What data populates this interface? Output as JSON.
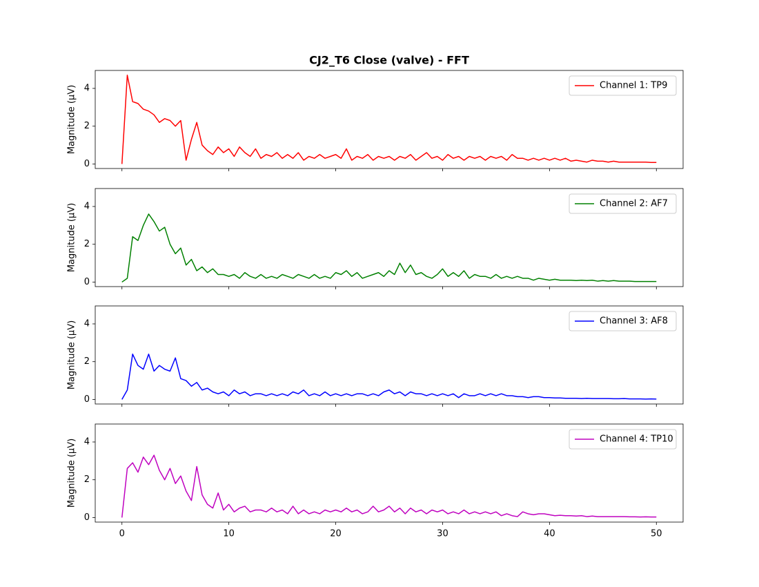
{
  "chart_data": {
    "type": "line",
    "title": "CJ2_T6 Close (valve) - FFT",
    "x": [
      0,
      0.5,
      1,
      1.5,
      2,
      2.5,
      3,
      3.5,
      4,
      4.5,
      5,
      5.5,
      6,
      6.5,
      7,
      7.5,
      8,
      8.5,
      9,
      9.5,
      10,
      10.5,
      11,
      11.5,
      12,
      12.5,
      13,
      13.5,
      14,
      14.5,
      15,
      15.5,
      16,
      16.5,
      17,
      17.5,
      18,
      18.5,
      19,
      19.5,
      20,
      20.5,
      21,
      21.5,
      22,
      22.5,
      23,
      23.5,
      24,
      24.5,
      25,
      25.5,
      26,
      26.5,
      27,
      27.5,
      28,
      28.5,
      29,
      29.5,
      30,
      30.5,
      31,
      31.5,
      32,
      32.5,
      33,
      33.5,
      34,
      34.5,
      35,
      35.5,
      36,
      36.5,
      37,
      37.5,
      38,
      38.5,
      39,
      39.5,
      40,
      40.5,
      41,
      41.5,
      42,
      42.5,
      43,
      43.5,
      44,
      44.5,
      45,
      45.5,
      46,
      46.5,
      47,
      47.5,
      48,
      48.5,
      49,
      49.5,
      50
    ],
    "xlim": [
      -2.5,
      52.5
    ],
    "xticks": [
      0,
      10,
      20,
      30,
      40,
      50
    ],
    "legend": "upper right",
    "panels": [
      {
        "ylabel": "Magnitude (μV)",
        "ylim": [
          -0.24,
          4.95
        ],
        "yticks": [
          0,
          2,
          4
        ],
        "series": [
          {
            "name": "Channel 1: TP9",
            "color": "#ff0000",
            "values": [
              0,
              4.7,
              3.3,
              3.2,
              2.9,
              2.8,
              2.6,
              2.2,
              2.4,
              2.3,
              2.0,
              2.3,
              0.2,
              1.3,
              2.2,
              1.0,
              0.7,
              0.5,
              0.9,
              0.6,
              0.8,
              0.4,
              0.9,
              0.6,
              0.4,
              0.8,
              0.3,
              0.5,
              0.4,
              0.6,
              0.3,
              0.5,
              0.3,
              0.6,
              0.2,
              0.4,
              0.3,
              0.5,
              0.3,
              0.4,
              0.5,
              0.3,
              0.8,
              0.2,
              0.4,
              0.3,
              0.5,
              0.2,
              0.4,
              0.3,
              0.4,
              0.2,
              0.4,
              0.3,
              0.5,
              0.2,
              0.4,
              0.6,
              0.3,
              0.4,
              0.2,
              0.5,
              0.3,
              0.4,
              0.2,
              0.4,
              0.3,
              0.4,
              0.2,
              0.4,
              0.3,
              0.4,
              0.2,
              0.5,
              0.3,
              0.3,
              0.2,
              0.3,
              0.2,
              0.3,
              0.2,
              0.3,
              0.2,
              0.3,
              0.15,
              0.2,
              0.15,
              0.1,
              0.2,
              0.15,
              0.15,
              0.1,
              0.15,
              0.1,
              0.1,
              0.1,
              0.1,
              0.1,
              0.1,
              0.08,
              0.08
            ]
          }
        ]
      },
      {
        "ylabel": "Magnitude (μV)",
        "ylim": [
          -0.24,
          4.95
        ],
        "yticks": [
          0,
          2,
          4
        ],
        "series": [
          {
            "name": "Channel 2: AF7",
            "color": "#008000",
            "values": [
              0,
              0.2,
              2.4,
              2.2,
              3.0,
              3.6,
              3.2,
              2.7,
              2.9,
              2.0,
              1.5,
              1.8,
              0.9,
              1.2,
              0.6,
              0.8,
              0.5,
              0.7,
              0.4,
              0.4,
              0.3,
              0.4,
              0.2,
              0.5,
              0.3,
              0.2,
              0.4,
              0.2,
              0.3,
              0.2,
              0.4,
              0.3,
              0.2,
              0.4,
              0.3,
              0.2,
              0.4,
              0.2,
              0.3,
              0.2,
              0.5,
              0.4,
              0.6,
              0.3,
              0.5,
              0.2,
              0.3,
              0.4,
              0.5,
              0.3,
              0.6,
              0.4,
              1.0,
              0.5,
              0.9,
              0.4,
              0.5,
              0.3,
              0.2,
              0.4,
              0.7,
              0.3,
              0.5,
              0.3,
              0.6,
              0.2,
              0.4,
              0.3,
              0.3,
              0.2,
              0.4,
              0.2,
              0.3,
              0.2,
              0.3,
              0.2,
              0.2,
              0.1,
              0.2,
              0.15,
              0.1,
              0.15,
              0.1,
              0.1,
              0.1,
              0.08,
              0.1,
              0.08,
              0.1,
              0.05,
              0.08,
              0.05,
              0.08,
              0.05,
              0.05,
              0.05,
              0.03,
              0.03,
              0.03,
              0.03,
              0.03
            ]
          }
        ]
      },
      {
        "ylabel": "Magnitude (μV)",
        "ylim": [
          -0.24,
          4.95
        ],
        "yticks": [
          0,
          2,
          4
        ],
        "series": [
          {
            "name": "Channel 3: AF8",
            "color": "#0000ff",
            "values": [
              0,
              0.5,
              2.4,
              1.8,
              1.6,
              2.4,
              1.5,
              1.8,
              1.6,
              1.5,
              2.2,
              1.1,
              1.0,
              0.7,
              0.9,
              0.5,
              0.6,
              0.4,
              0.3,
              0.4,
              0.2,
              0.5,
              0.3,
              0.4,
              0.2,
              0.3,
              0.3,
              0.2,
              0.3,
              0.2,
              0.3,
              0.2,
              0.4,
              0.3,
              0.5,
              0.2,
              0.3,
              0.2,
              0.4,
              0.2,
              0.3,
              0.2,
              0.3,
              0.2,
              0.3,
              0.3,
              0.2,
              0.3,
              0.2,
              0.4,
              0.5,
              0.3,
              0.4,
              0.2,
              0.4,
              0.3,
              0.3,
              0.2,
              0.3,
              0.2,
              0.3,
              0.2,
              0.3,
              0.1,
              0.3,
              0.2,
              0.2,
              0.3,
              0.2,
              0.3,
              0.2,
              0.3,
              0.2,
              0.2,
              0.15,
              0.15,
              0.1,
              0.15,
              0.15,
              0.1,
              0.1,
              0.08,
              0.08,
              0.06,
              0.06,
              0.06,
              0.05,
              0.06,
              0.05,
              0.05,
              0.05,
              0.05,
              0.04,
              0.04,
              0.05,
              0.03,
              0.03,
              0.03,
              0.02,
              0.03,
              0.02
            ]
          }
        ]
      },
      {
        "ylabel": "Magnitude (μV)",
        "ylim": [
          -0.24,
          4.95
        ],
        "yticks": [
          0,
          2,
          4
        ],
        "series": [
          {
            "name": "Channel 4: TP10",
            "color": "#bf00bf",
            "values": [
              0,
              2.6,
              2.9,
              2.4,
              3.2,
              2.8,
              3.3,
              2.5,
              2.0,
              2.6,
              1.8,
              2.2,
              1.4,
              0.9,
              2.7,
              1.2,
              0.7,
              0.5,
              1.3,
              0.4,
              0.7,
              0.3,
              0.5,
              0.6,
              0.3,
              0.4,
              0.4,
              0.3,
              0.5,
              0.3,
              0.4,
              0.2,
              0.6,
              0.2,
              0.4,
              0.2,
              0.3,
              0.2,
              0.4,
              0.3,
              0.4,
              0.3,
              0.5,
              0.3,
              0.4,
              0.2,
              0.3,
              0.6,
              0.3,
              0.4,
              0.6,
              0.3,
              0.5,
              0.2,
              0.5,
              0.3,
              0.4,
              0.2,
              0.4,
              0.3,
              0.4,
              0.2,
              0.3,
              0.2,
              0.4,
              0.2,
              0.3,
              0.2,
              0.3,
              0.2,
              0.3,
              0.1,
              0.2,
              0.1,
              0.05,
              0.3,
              0.2,
              0.15,
              0.2,
              0.2,
              0.15,
              0.1,
              0.12,
              0.1,
              0.1,
              0.08,
              0.1,
              0.05,
              0.08,
              0.05,
              0.05,
              0.05,
              0.05,
              0.05,
              0.05,
              0.04,
              0.04,
              0.03,
              0.04,
              0.03,
              0.03
            ]
          }
        ]
      }
    ]
  }
}
